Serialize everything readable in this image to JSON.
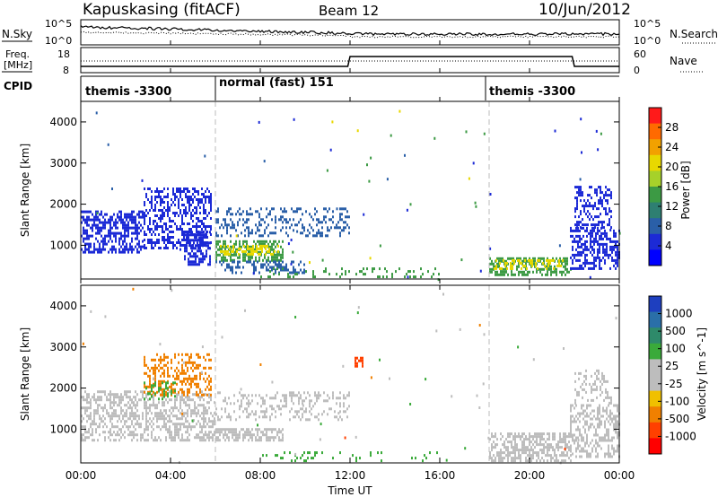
{
  "header": {
    "title": "Kapuskasing (fitACF)",
    "beam": "Beam 12",
    "date": "10/Jun/2012"
  },
  "panels": {
    "nsky": {
      "left_label": "N.Sky",
      "left_ticks": [
        "10^5",
        "10^0"
      ],
      "right_ticks": [
        "10^5",
        "10^0"
      ],
      "right_label": "N.Search"
    },
    "freq": {
      "left_label_top": "Freq.",
      "left_label_bottom": "[MHz]",
      "left_ticks": [
        "18",
        "8"
      ],
      "right_ticks": [
        "60",
        "0"
      ],
      "right_label": "Nave"
    },
    "cpid": {
      "label": "CPID",
      "segments": [
        "themis -3300",
        "normal (fast) 151",
        "themis -3300"
      ]
    }
  },
  "axes": {
    "y_label": "Slant Range [km]",
    "y_ticks": [
      "1000",
      "2000",
      "3000",
      "4000"
    ],
    "x_label": "Time UT",
    "x_ticks": [
      "00:00",
      "04:00",
      "08:00",
      "12:00",
      "16:00",
      "20:00",
      "00:00"
    ]
  },
  "colorbars": {
    "power": {
      "label": "Power [dB]",
      "ticks": [
        "28",
        "24",
        "20",
        "16",
        "12",
        "8",
        "4"
      ],
      "colors": [
        "#ff1a1a",
        "#ff6a00",
        "#f2a100",
        "#e8d800",
        "#a6d12a",
        "#3c9a44",
        "#2e7f72",
        "#2a5fa8",
        "#1c2ad6",
        "#0000ff"
      ]
    },
    "velocity": {
      "label": "Velocity [m s^-1]",
      "ticks": [
        "1000",
        "500",
        "100",
        "25",
        "-25",
        "-100",
        "-500",
        "-1000"
      ],
      "colors": [
        "#1e3fbf",
        "#2a6fa8",
        "#2e8a6a",
        "#3aaa3a",
        "#bdbdbd",
        "#bdbdbd",
        "#f0c000",
        "#f08000",
        "#ff4000",
        "#ff0000"
      ]
    }
  },
  "chart_data": {
    "type": "heatmap",
    "x_unit": "hours UT",
    "xlim": [
      0,
      24
    ],
    "ylim": [
      180,
      4500
    ],
    "y_unit": "km",
    "cpid_changes_hours": [
      6,
      18.2
    ],
    "power_blobs": [
      {
        "t0": 0.0,
        "t1": 2.8,
        "r0": 800,
        "r1": 1800,
        "color": "#1c2ad6",
        "density": 0.55
      },
      {
        "t0": 2.8,
        "t1": 5.8,
        "r0": 900,
        "r1": 2400,
        "color": "#1c2ad6",
        "density": 0.45
      },
      {
        "t0": 4.6,
        "t1": 5.8,
        "r0": 500,
        "r1": 1300,
        "color": "#1c2ad6",
        "density": 0.6
      },
      {
        "t0": 6.0,
        "t1": 9.0,
        "r0": 600,
        "r1": 1100,
        "color": "#3c9a44",
        "density": 0.55
      },
      {
        "t0": 6.2,
        "t1": 8.8,
        "r0": 750,
        "r1": 950,
        "color": "#e8d800",
        "density": 0.5
      },
      {
        "t0": 6.0,
        "t1": 12.0,
        "r0": 1200,
        "r1": 1900,
        "color": "#2a5fa8",
        "density": 0.3
      },
      {
        "t0": 6.0,
        "t1": 10.0,
        "r0": 300,
        "r1": 600,
        "color": "#2a5fa8",
        "density": 0.35
      },
      {
        "t0": 18.2,
        "t1": 21.8,
        "r0": 250,
        "r1": 700,
        "color": "#3c9a44",
        "density": 0.55
      },
      {
        "t0": 18.4,
        "t1": 21.5,
        "r0": 400,
        "r1": 600,
        "color": "#e8d800",
        "density": 0.35
      },
      {
        "t0": 21.8,
        "t1": 24.0,
        "r0": 400,
        "r1": 1400,
        "color": "#1c2ad6",
        "density": 0.5
      },
      {
        "t0": 22.0,
        "t1": 23.6,
        "r0": 1400,
        "r1": 2400,
        "color": "#1c2ad6",
        "density": 0.35
      },
      {
        "t0": 8.0,
        "t1": 16.0,
        "r0": 200,
        "r1": 400,
        "color": "#3c9a44",
        "density": 0.15
      }
    ],
    "velocity_blobs": [
      {
        "t0": 0.0,
        "t1": 6.0,
        "r0": 700,
        "r1": 1900,
        "color": "#bdbdbd",
        "density": 0.45
      },
      {
        "t0": 2.8,
        "t1": 5.8,
        "r0": 1800,
        "r1": 2800,
        "color": "#f08000",
        "density": 0.35
      },
      {
        "t0": 2.8,
        "t1": 4.2,
        "r0": 1700,
        "r1": 2100,
        "color": "#3aaa3a",
        "density": 0.3
      },
      {
        "t0": 6.0,
        "t1": 9.0,
        "r0": 700,
        "r1": 1000,
        "color": "#bdbdbd",
        "density": 0.6
      },
      {
        "t0": 6.0,
        "t1": 12.0,
        "r0": 1200,
        "r1": 1900,
        "color": "#bdbdbd",
        "density": 0.3
      },
      {
        "t0": 12.2,
        "t1": 12.6,
        "r0": 2500,
        "r1": 2700,
        "color": "#ff4000",
        "density": 0.6
      },
      {
        "t0": 18.2,
        "t1": 21.8,
        "r0": 200,
        "r1": 900,
        "color": "#bdbdbd",
        "density": 0.55
      },
      {
        "t0": 21.8,
        "t1": 24.0,
        "r0": 300,
        "r1": 1600,
        "color": "#bdbdbd",
        "density": 0.45
      },
      {
        "t0": 22.0,
        "t1": 23.6,
        "r0": 1600,
        "r1": 2400,
        "color": "#bdbdbd",
        "density": 0.3
      },
      {
        "t0": 8.0,
        "t1": 16.0,
        "r0": 200,
        "r1": 400,
        "color": "#3aaa3a",
        "density": 0.12
      }
    ]
  }
}
